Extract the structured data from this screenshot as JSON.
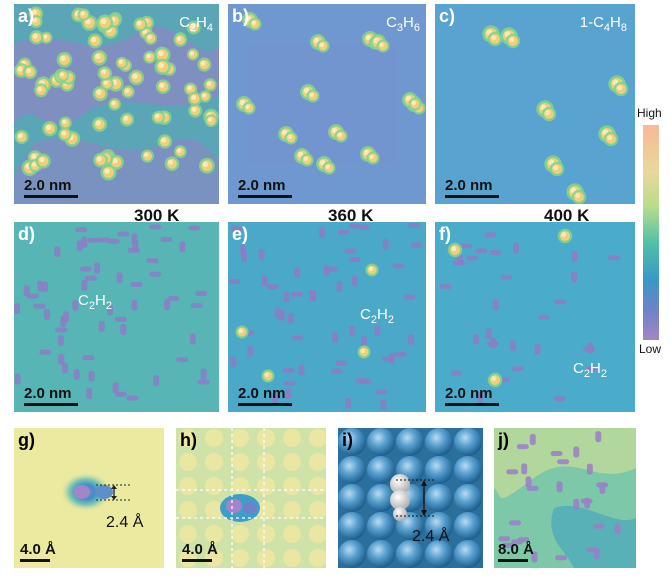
{
  "panels": {
    "a": {
      "label": "a)",
      "molecule": "C2H4",
      "mol_main": "C",
      "mol_sub1": "2",
      "mol_mid": "H",
      "mol_sub2": "4",
      "scale": "2.0 nm"
    },
    "b": {
      "label": "b)",
      "molecule": "C3H6",
      "mol_main": "C",
      "mol_sub1": "3",
      "mol_mid": "H",
      "mol_sub2": "6",
      "scale": "2.0 nm"
    },
    "c": {
      "label": "c)",
      "molecule": "1-C4H8",
      "mol_main": "1-C",
      "mol_sub1": "4",
      "mol_mid": "H",
      "mol_sub2": "8",
      "scale": "2.0 nm"
    },
    "d": {
      "label": "d)",
      "mol_main": "C",
      "mol_sub1": "2",
      "mol_mid": "H",
      "mol_sub2": "2",
      "scale": "2.0 nm"
    },
    "e": {
      "label": "e)",
      "mol_main": "C",
      "mol_sub1": "2",
      "mol_mid": "H",
      "mol_sub2": "2",
      "scale": "2.0 nm"
    },
    "f": {
      "label": "f)",
      "mol_main": "C",
      "mol_sub1": "2",
      "mol_mid": "H",
      "mol_sub2": "2",
      "scale": "2.0 nm"
    },
    "g": {
      "label": "g)",
      "measure": "2.4 Å",
      "scale": "4.0 Å"
    },
    "h": {
      "label": "h)",
      "scale": "4.0 Å"
    },
    "i": {
      "label": "i)",
      "measure": "2.4 Å"
    },
    "j": {
      "label": "j)",
      "scale": "8.0 Å"
    }
  },
  "temperatures": {
    "t1": "300 K",
    "t2": "360 K",
    "t3": "400 K"
  },
  "colorbar": {
    "high": "High",
    "low": "Low"
  },
  "colors": {
    "background": "#5b9bd4",
    "dot": "#f0d27a",
    "ring": "#7fd08a",
    "dimer": "#9a7fc8",
    "substrate_yellow": "#ece9a0"
  }
}
